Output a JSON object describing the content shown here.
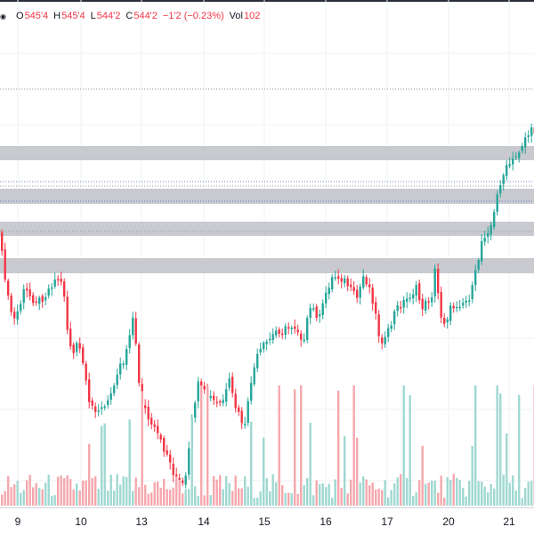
{
  "legend": {
    "open_label": "O",
    "open": "545'4",
    "high_label": "H",
    "high": "545'4",
    "low_label": "L",
    "low": "544'2",
    "close_label": "C",
    "close": "544'2",
    "change": "−1'2 (−0.23%)",
    "vol_label": "Vol",
    "vol": "102"
  },
  "colors": {
    "up": "#26a69a",
    "down": "#f23645",
    "up_volume": "#9fd8d1",
    "down_volume": "#f6a7ad",
    "zone": "#c8cad0",
    "gridline": "#eef0f3"
  },
  "icons": {
    "visibility": "eye-icon"
  },
  "chart_data": {
    "type": "candlestick",
    "x_tick_labels": [
      "9",
      "10",
      "13",
      "14",
      "15",
      "16",
      "17",
      "20",
      "21"
    ],
    "last_candle": {
      "open": "545'4",
      "high": "545'4",
      "low": "544'2",
      "close": "544'2",
      "volume": 102
    },
    "price_zones": 4,
    "grid": true
  }
}
